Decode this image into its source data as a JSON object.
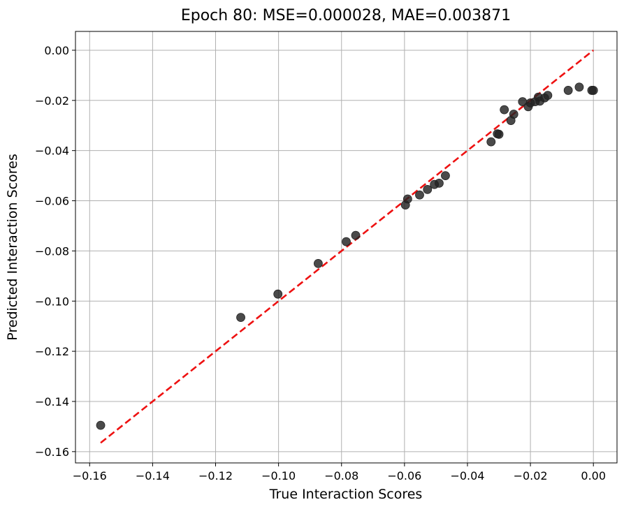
{
  "chart_data": {
    "type": "scatter",
    "title": "Epoch 80: MSE=0.000028, MAE=0.003871",
    "xlabel": "True Interaction Scores",
    "ylabel": "Predicted Interaction Scores",
    "xlim": [
      -0.1645,
      0.0075
    ],
    "ylim": [
      -0.1645,
      0.0075
    ],
    "xticks": [
      -0.16,
      -0.14,
      -0.12,
      -0.1,
      -0.08,
      -0.06,
      -0.04,
      -0.02,
      0.0
    ],
    "xtick_labels": [
      "−0.16",
      "−0.14",
      "−0.12",
      "−0.10",
      "−0.08",
      "−0.06",
      "−0.04",
      "−0.02",
      "0.00"
    ],
    "yticks": [
      0.0,
      -0.02,
      -0.04,
      -0.06,
      -0.08,
      -0.1,
      -0.12,
      -0.14,
      -0.16
    ],
    "ytick_labels": [
      "0.00",
      "−0.02",
      "−0.04",
      "−0.06",
      "−0.08",
      "−0.10",
      "−0.12",
      "−0.14",
      "−0.16"
    ],
    "grid": true,
    "colors": {
      "points": "#222222",
      "reference_line": "#ee1111",
      "grid": "#b0b0b0"
    },
    "reference_line": {
      "style": "dashed",
      "x": [
        -0.1565,
        0.0
      ],
      "y": [
        -0.1565,
        0.0
      ]
    },
    "points": [
      {
        "x": -0.1565,
        "y": -0.1495
      },
      {
        "x": -0.112,
        "y": -0.1065
      },
      {
        "x": -0.1002,
        "y": -0.0972
      },
      {
        "x": -0.0874,
        "y": -0.085
      },
      {
        "x": -0.0785,
        "y": -0.0763
      },
      {
        "x": -0.0755,
        "y": -0.0738
      },
      {
        "x": -0.0597,
        "y": -0.0617
      },
      {
        "x": -0.059,
        "y": -0.0593
      },
      {
        "x": -0.0552,
        "y": -0.0577
      },
      {
        "x": -0.0527,
        "y": -0.0555
      },
      {
        "x": -0.0505,
        "y": -0.0535
      },
      {
        "x": -0.049,
        "y": -0.053
      },
      {
        "x": -0.047,
        "y": -0.05
      },
      {
        "x": -0.0325,
        "y": -0.0365
      },
      {
        "x": -0.0305,
        "y": -0.0333
      },
      {
        "x": -0.03,
        "y": -0.0335
      },
      {
        "x": -0.0283,
        "y": -0.0237
      },
      {
        "x": -0.0262,
        "y": -0.028
      },
      {
        "x": -0.0253,
        "y": -0.0255
      },
      {
        "x": -0.0225,
        "y": -0.0205
      },
      {
        "x": -0.0207,
        "y": -0.0225
      },
      {
        "x": -0.02,
        "y": -0.021
      },
      {
        "x": -0.0185,
        "y": -0.0205
      },
      {
        "x": -0.0175,
        "y": -0.0187
      },
      {
        "x": -0.017,
        "y": -0.0203
      },
      {
        "x": -0.0155,
        "y": -0.019
      },
      {
        "x": -0.0145,
        "y": -0.018
      },
      {
        "x": -0.008,
        "y": -0.016
      },
      {
        "x": -0.0045,
        "y": -0.0147
      },
      {
        "x": -0.0005,
        "y": -0.016
      },
      {
        "x": 0.0,
        "y": -0.016
      }
    ]
  }
}
